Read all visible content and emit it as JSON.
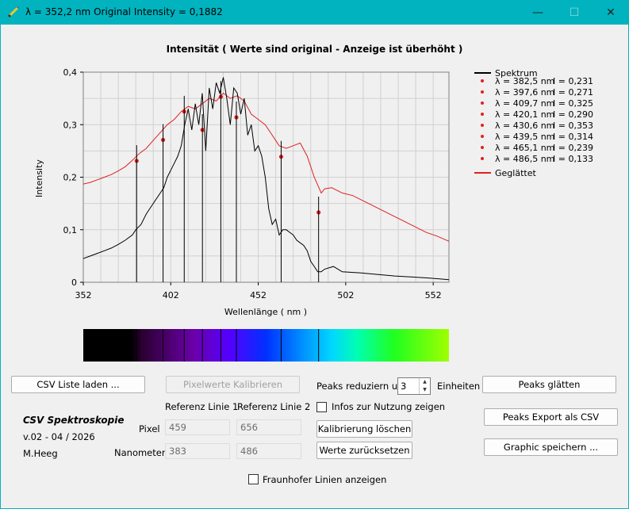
{
  "window": {
    "title": "λ = 352,2 nm  Original Intensity = 0,1882",
    "minimize_glyph": "—",
    "maximize_glyph": "☐",
    "close_glyph": "✕"
  },
  "chart": {
    "title": "Intensität ( Werte sind original - Anzeige ist überhöht )",
    "xlabel": "Wellenlänge ( nm )",
    "ylabel": "Intensity",
    "x_ticks": [
      "352",
      "402",
      "452",
      "502",
      "552"
    ],
    "y_ticks": [
      "0",
      "0,1",
      "0,2",
      "0,3",
      "0,4"
    ],
    "legend": {
      "spectrum": "Spektrum",
      "smoothed": "Geglättet",
      "peaks": [
        {
          "lambda": "λ = 382,5 nm",
          "intensity": "I = 0,231"
        },
        {
          "lambda": "λ = 397,6 nm",
          "intensity": "I = 0,271"
        },
        {
          "lambda": "λ = 409,7 nm",
          "intensity": "I = 0,325"
        },
        {
          "lambda": "λ = 420,1 nm",
          "intensity": "I = 0,290"
        },
        {
          "lambda": "λ = 430,6 nm",
          "intensity": "I = 0,353"
        },
        {
          "lambda": "λ = 439,5 nm",
          "intensity": "I = 0,314"
        },
        {
          "lambda": "λ = 465,1 nm",
          "intensity": "I = 0,239"
        },
        {
          "lambda": "λ = 486,5 nm",
          "intensity": "I = 0,133"
        }
      ]
    }
  },
  "chart_data": {
    "type": "line",
    "title": "Intensität ( Werte sind original - Anzeige ist überhöht )",
    "xlabel": "Wellenlänge ( nm )",
    "ylabel": "Intensity",
    "xlim": [
      352,
      561
    ],
    "ylim": [
      0,
      0.4
    ],
    "grid": true,
    "legend_position": "right",
    "series": [
      {
        "name": "Spektrum",
        "color": "#000000",
        "x": [
          352,
          356,
          360,
          364,
          368,
          372,
          376,
          380,
          382,
          385,
          388,
          392,
          396,
          398,
          400,
          403,
          406,
          408,
          410,
          412,
          414,
          416,
          418,
          420,
          422,
          424,
          426,
          428,
          430,
          432,
          434,
          436,
          438,
          440,
          442,
          444,
          446,
          448,
          450,
          452,
          454,
          456,
          458,
          460,
          462,
          464,
          466,
          468,
          470,
          472,
          474,
          476,
          478,
          480,
          482,
          484,
          486,
          488,
          490,
          495,
          500,
          510,
          520,
          530,
          540,
          550,
          561
        ],
        "y": [
          0.045,
          0.05,
          0.055,
          0.06,
          0.065,
          0.072,
          0.08,
          0.09,
          0.1,
          0.11,
          0.13,
          0.15,
          0.17,
          0.18,
          0.2,
          0.22,
          0.24,
          0.26,
          0.3,
          0.33,
          0.29,
          0.34,
          0.3,
          0.36,
          0.25,
          0.37,
          0.33,
          0.38,
          0.36,
          0.39,
          0.35,
          0.3,
          0.37,
          0.36,
          0.32,
          0.35,
          0.28,
          0.3,
          0.25,
          0.26,
          0.24,
          0.2,
          0.14,
          0.11,
          0.12,
          0.09,
          0.1,
          0.1,
          0.095,
          0.09,
          0.08,
          0.075,
          0.07,
          0.06,
          0.04,
          0.03,
          0.02,
          0.02,
          0.025,
          0.03,
          0.02,
          0.018,
          0.015,
          0.012,
          0.01,
          0.008,
          0.005
        ]
      },
      {
        "name": "Geglättet",
        "color": "#e02020",
        "x": [
          352,
          356,
          360,
          364,
          368,
          372,
          376,
          380,
          384,
          388,
          392,
          396,
          400,
          404,
          408,
          412,
          416,
          420,
          424,
          428,
          432,
          436,
          440,
          444,
          448,
          452,
          456,
          460,
          464,
          468,
          472,
          476,
          480,
          484,
          486,
          488,
          490,
          494,
          500,
          506,
          512,
          518,
          524,
          530,
          536,
          542,
          548,
          554,
          561
        ],
        "y": [
          0.187,
          0.19,
          0.195,
          0.2,
          0.205,
          0.212,
          0.22,
          0.232,
          0.245,
          0.255,
          0.27,
          0.285,
          0.3,
          0.31,
          0.325,
          0.335,
          0.33,
          0.34,
          0.35,
          0.345,
          0.36,
          0.35,
          0.355,
          0.345,
          0.32,
          0.31,
          0.3,
          0.28,
          0.26,
          0.255,
          0.26,
          0.265,
          0.24,
          0.2,
          0.185,
          0.17,
          0.178,
          0.18,
          0.17,
          0.165,
          0.155,
          0.145,
          0.135,
          0.125,
          0.115,
          0.105,
          0.095,
          0.088,
          0.078
        ]
      },
      {
        "name": "Peaks",
        "color": "#e02020",
        "type": "scatter",
        "x": [
          382.5,
          397.6,
          409.7,
          420.1,
          430.6,
          439.5,
          465.1,
          486.5
        ],
        "y": [
          0.231,
          0.271,
          0.325,
          0.29,
          0.353,
          0.314,
          0.239,
          0.133
        ]
      }
    ]
  },
  "controls": {
    "csv_load": "CSV Liste laden ...",
    "calibrate": "Pixelwerte Kalibrieren",
    "peaks_reduce_label": "Peaks reduziern um",
    "peaks_reduce_value": "3",
    "units_label": "Einheiten",
    "peaks_smooth": "Peaks glätten",
    "ref_line1": "Referenz Linie 1",
    "ref_line2": "Referenz Linie 2",
    "info_checkbox": "Infos zur Nutzung zeigen",
    "peaks_export": "Peaks Export als CSV",
    "pixel_label": "Pixel",
    "pixel1": "459",
    "pixel2": "656",
    "clear_calibration": "Kalibrierung löschen",
    "graphic_save": "Graphic speichern ...",
    "nm_label": "Nanometer",
    "nm1": "383",
    "nm2": "486",
    "reset_values": "Werte zurücksetzen",
    "fraunhofer_checkbox": "Fraunhofer Linien anzeigen"
  },
  "about": {
    "name": "CSV Spektroskopie",
    "version": "v.02 - 04 / 2026",
    "author": "M.Heeg"
  },
  "colors": {
    "titlebar": "#00b3bf",
    "spectrum": "#000000",
    "smoothed": "#e02020",
    "grid": "#d0d0d0"
  }
}
